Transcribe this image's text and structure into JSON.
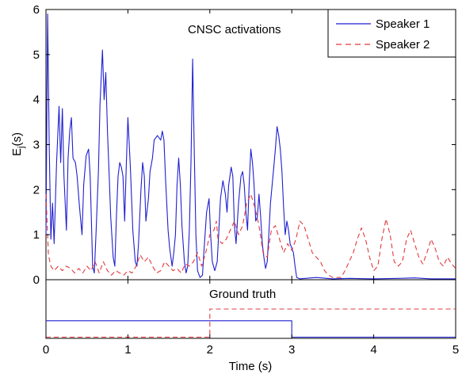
{
  "chart_data": [
    {
      "type": "line",
      "panel": "activations",
      "annotation": "CNSC activations",
      "ylabel_main": "E",
      "ylabel_sub": "j",
      "ylabel_suffix": "(s)",
      "xlim": [
        0,
        5
      ],
      "ylim": [
        0,
        6
      ],
      "xticks": [
        0,
        1,
        2,
        3,
        4,
        5
      ],
      "yticks": [
        0,
        1,
        2,
        3,
        4,
        5,
        6
      ],
      "grid": false,
      "legend_position": "top-right",
      "series": [
        {
          "name": "Speaker 1",
          "color": "#1f1fd0",
          "style": "solid",
          "points": [
            [
              0.0,
              1.0
            ],
            [
              0.02,
              5.9
            ],
            [
              0.04,
              3.0
            ],
            [
              0.06,
              0.9
            ],
            [
              0.08,
              1.7
            ],
            [
              0.1,
              0.8
            ],
            [
              0.13,
              2.6
            ],
            [
              0.16,
              3.85
            ],
            [
              0.18,
              2.6
            ],
            [
              0.2,
              3.8
            ],
            [
              0.22,
              2.3
            ],
            [
              0.25,
              1.1
            ],
            [
              0.27,
              2.7
            ],
            [
              0.29,
              3.3
            ],
            [
              0.31,
              3.6
            ],
            [
              0.33,
              2.7
            ],
            [
              0.36,
              2.6
            ],
            [
              0.38,
              2.3
            ],
            [
              0.41,
              1.6
            ],
            [
              0.44,
              1.0
            ],
            [
              0.46,
              2.1
            ],
            [
              0.49,
              2.75
            ],
            [
              0.52,
              2.9
            ],
            [
              0.54,
              2.3
            ],
            [
              0.57,
              0.3
            ],
            [
              0.59,
              0.15
            ],
            [
              0.61,
              1.0
            ],
            [
              0.64,
              2.4
            ],
            [
              0.66,
              3.9
            ],
            [
              0.69,
              5.1
            ],
            [
              0.71,
              4.0
            ],
            [
              0.73,
              4.6
            ],
            [
              0.75,
              3.3
            ],
            [
              0.77,
              2.4
            ],
            [
              0.79,
              1.4
            ],
            [
              0.82,
              0.5
            ],
            [
              0.84,
              0.3
            ],
            [
              0.86,
              1.4
            ],
            [
              0.88,
              2.3
            ],
            [
              0.9,
              2.6
            ],
            [
              0.92,
              2.5
            ],
            [
              0.94,
              2.3
            ],
            [
              0.96,
              1.3
            ],
            [
              0.98,
              2.5
            ],
            [
              1.0,
              3.6
            ],
            [
              1.03,
              2.5
            ],
            [
              1.06,
              1.1
            ],
            [
              1.09,
              0.4
            ],
            [
              1.11,
              0.3
            ],
            [
              1.13,
              0.8
            ],
            [
              1.16,
              2.0
            ],
            [
              1.18,
              2.6
            ],
            [
              1.2,
              2.3
            ],
            [
              1.22,
              1.3
            ],
            [
              1.25,
              1.8
            ],
            [
              1.27,
              2.4
            ],
            [
              1.3,
              2.7
            ],
            [
              1.32,
              3.1
            ],
            [
              1.36,
              3.2
            ],
            [
              1.4,
              3.1
            ],
            [
              1.42,
              3.3
            ],
            [
              1.44,
              3.1
            ],
            [
              1.46,
              2.2
            ],
            [
              1.49,
              1.1
            ],
            [
              1.51,
              0.7
            ],
            [
              1.54,
              0.3
            ],
            [
              1.56,
              0.6
            ],
            [
              1.58,
              1.0
            ],
            [
              1.6,
              2.1
            ],
            [
              1.62,
              2.7
            ],
            [
              1.64,
              2.1
            ],
            [
              1.66,
              1.2
            ],
            [
              1.69,
              0.4
            ],
            [
              1.71,
              0.15
            ],
            [
              1.73,
              0.3
            ],
            [
              1.75,
              1.1
            ],
            [
              1.77,
              2.6
            ],
            [
              1.79,
              4.9
            ],
            [
              1.81,
              2.8
            ],
            [
              1.83,
              1.0
            ],
            [
              1.85,
              0.2
            ],
            [
              1.88,
              0.05
            ],
            [
              1.91,
              0.1
            ],
            [
              1.93,
              0.7
            ],
            [
              1.96,
              1.5
            ],
            [
              1.99,
              1.8
            ],
            [
              2.01,
              1.0
            ],
            [
              2.03,
              0.4
            ],
            [
              2.06,
              0.2
            ],
            [
              2.09,
              0.4
            ],
            [
              2.11,
              1.1
            ],
            [
              2.13,
              1.8
            ],
            [
              2.16,
              2.2
            ],
            [
              2.19,
              1.9
            ],
            [
              2.21,
              1.5
            ],
            [
              2.23,
              2.1
            ],
            [
              2.26,
              2.5
            ],
            [
              2.28,
              2.3
            ],
            [
              2.3,
              1.2
            ],
            [
              2.32,
              0.8
            ],
            [
              2.35,
              1.7
            ],
            [
              2.38,
              2.3
            ],
            [
              2.4,
              2.4
            ],
            [
              2.42,
              2.1
            ],
            [
              2.44,
              1.5
            ],
            [
              2.46,
              1.1
            ],
            [
              2.48,
              2.1
            ],
            [
              2.5,
              2.9
            ],
            [
              2.52,
              2.6
            ],
            [
              2.54,
              2.1
            ],
            [
              2.56,
              1.3
            ],
            [
              2.58,
              1.4
            ],
            [
              2.6,
              1.9
            ],
            [
              2.62,
              1.4
            ],
            [
              2.64,
              0.8
            ],
            [
              2.66,
              0.5
            ],
            [
              2.68,
              0.25
            ],
            [
              2.7,
              0.4
            ],
            [
              2.72,
              1.0
            ],
            [
              2.74,
              1.7
            ],
            [
              2.76,
              2.1
            ],
            [
              2.78,
              2.5
            ],
            [
              2.8,
              2.9
            ],
            [
              2.82,
              3.4
            ],
            [
              2.84,
              3.2
            ],
            [
              2.86,
              2.9
            ],
            [
              2.88,
              2.4
            ],
            [
              2.9,
              1.6
            ],
            [
              2.92,
              1.0
            ],
            [
              2.94,
              1.3
            ],
            [
              2.96,
              1.1
            ],
            [
              2.98,
              0.8
            ],
            [
              3.0,
              0.7
            ],
            [
              3.02,
              0.6
            ],
            [
              3.04,
              0.3
            ],
            [
              3.06,
              0.05
            ],
            [
              3.1,
              0.02
            ],
            [
              3.3,
              0.05
            ],
            [
              3.5,
              0.02
            ],
            [
              3.7,
              0.03
            ],
            [
              4.0,
              0.02
            ],
            [
              4.3,
              0.03
            ],
            [
              4.5,
              0.04
            ],
            [
              4.7,
              0.02
            ],
            [
              5.0,
              0.02
            ]
          ]
        },
        {
          "name": "Speaker 2",
          "color": "#e3383b",
          "style": "dashed",
          "points": [
            [
              0.0,
              1.9
            ],
            [
              0.03,
              0.55
            ],
            [
              0.06,
              0.3
            ],
            [
              0.1,
              0.2
            ],
            [
              0.15,
              0.3
            ],
            [
              0.2,
              0.2
            ],
            [
              0.25,
              0.3
            ],
            [
              0.3,
              0.25
            ],
            [
              0.35,
              0.15
            ],
            [
              0.4,
              0.25
            ],
            [
              0.45,
              0.15
            ],
            [
              0.5,
              0.3
            ],
            [
              0.55,
              0.2
            ],
            [
              0.6,
              0.4
            ],
            [
              0.65,
              0.15
            ],
            [
              0.7,
              0.4
            ],
            [
              0.75,
              0.2
            ],
            [
              0.8,
              0.1
            ],
            [
              0.85,
              0.2
            ],
            [
              0.9,
              0.15
            ],
            [
              0.95,
              0.1
            ],
            [
              1.0,
              0.2
            ],
            [
              1.05,
              0.15
            ],
            [
              1.1,
              0.3
            ],
            [
              1.15,
              0.55
            ],
            [
              1.2,
              0.4
            ],
            [
              1.25,
              0.5
            ],
            [
              1.3,
              0.3
            ],
            [
              1.35,
              0.15
            ],
            [
              1.4,
              0.2
            ],
            [
              1.45,
              0.4
            ],
            [
              1.5,
              0.3
            ],
            [
              1.55,
              0.2
            ],
            [
              1.6,
              0.25
            ],
            [
              1.65,
              0.15
            ],
            [
              1.7,
              0.35
            ],
            [
              1.75,
              0.3
            ],
            [
              1.8,
              0.4
            ],
            [
              1.85,
              0.6
            ],
            [
              1.9,
              0.3
            ],
            [
              1.95,
              0.6
            ],
            [
              2.0,
              1.0
            ],
            [
              2.05,
              1.1
            ],
            [
              2.08,
              1.3
            ],
            [
              2.1,
              0.9
            ],
            [
              2.15,
              0.8
            ],
            [
              2.2,
              0.9
            ],
            [
              2.25,
              1.1
            ],
            [
              2.3,
              1.3
            ],
            [
              2.35,
              1.0
            ],
            [
              2.4,
              1.2
            ],
            [
              2.45,
              1.7
            ],
            [
              2.5,
              1.9
            ],
            [
              2.55,
              1.6
            ],
            [
              2.6,
              1.2
            ],
            [
              2.65,
              0.6
            ],
            [
              2.7,
              0.5
            ],
            [
              2.75,
              1.1
            ],
            [
              2.8,
              1.2
            ],
            [
              2.85,
              0.9
            ],
            [
              2.9,
              0.6
            ],
            [
              2.95,
              0.8
            ],
            [
              3.0,
              0.65
            ],
            [
              3.05,
              0.9
            ],
            [
              3.1,
              1.3
            ],
            [
              3.15,
              1.2
            ],
            [
              3.2,
              0.9
            ],
            [
              3.25,
              0.6
            ],
            [
              3.3,
              0.5
            ],
            [
              3.35,
              0.4
            ],
            [
              3.4,
              0.2
            ],
            [
              3.45,
              0.1
            ],
            [
              3.5,
              0.05
            ],
            [
              3.55,
              0.05
            ],
            [
              3.6,
              0.05
            ],
            [
              3.65,
              0.2
            ],
            [
              3.7,
              0.4
            ],
            [
              3.75,
              0.6
            ],
            [
              3.8,
              0.9
            ],
            [
              3.85,
              1.15
            ],
            [
              3.9,
              0.9
            ],
            [
              3.95,
              0.5
            ],
            [
              4.0,
              0.2
            ],
            [
              4.05,
              0.3
            ],
            [
              4.1,
              0.9
            ],
            [
              4.15,
              1.35
            ],
            [
              4.2,
              1.0
            ],
            [
              4.25,
              0.4
            ],
            [
              4.3,
              0.3
            ],
            [
              4.35,
              0.4
            ],
            [
              4.4,
              0.9
            ],
            [
              4.45,
              1.1
            ],
            [
              4.5,
              0.8
            ],
            [
              4.55,
              0.5
            ],
            [
              4.6,
              0.35
            ],
            [
              4.65,
              0.6
            ],
            [
              4.7,
              0.9
            ],
            [
              4.75,
              0.7
            ],
            [
              4.8,
              0.4
            ],
            [
              4.85,
              0.3
            ],
            [
              4.9,
              0.5
            ],
            [
              4.95,
              0.35
            ],
            [
              5.0,
              0.25
            ]
          ]
        }
      ]
    },
    {
      "type": "line",
      "panel": "ground-truth",
      "annotation": "Ground truth",
      "xlabel": "Time (s)",
      "xlim": [
        0,
        5
      ],
      "ylim": [
        0,
        1
      ],
      "xticks": [
        0,
        1,
        2,
        3,
        4,
        5
      ],
      "series": [
        {
          "name": "Speaker 1",
          "color": "#1f1fd0",
          "style": "solid",
          "points": [
            [
              0,
              0.3
            ],
            [
              3,
              0.3
            ],
            [
              3,
              0.02
            ],
            [
              5,
              0.02
            ]
          ]
        },
        {
          "name": "Speaker 2",
          "color": "#e3383b",
          "style": "dashed",
          "points": [
            [
              0,
              0.02
            ],
            [
              2,
              0.02
            ],
            [
              2,
              0.5
            ],
            [
              5,
              0.5
            ]
          ]
        }
      ]
    }
  ]
}
